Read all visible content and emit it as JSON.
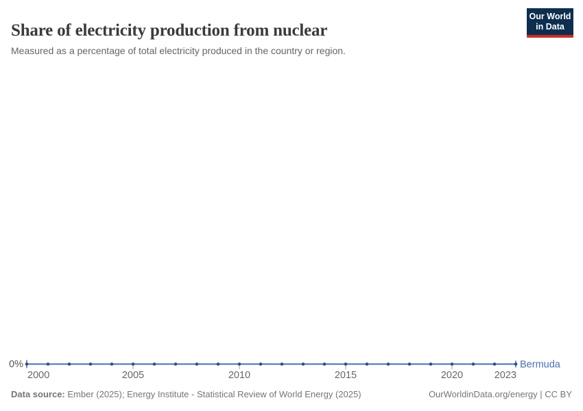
{
  "header": {
    "title": "Share of electricity production from nuclear",
    "subtitle": "Measured as a percentage of total electricity produced in the country or region.",
    "logo": {
      "line1": "Our World",
      "line2": "in Data",
      "bg_color": "#0d2e4e",
      "accent_color": "#cb2d22"
    }
  },
  "chart_data": {
    "type": "line",
    "title": "Share of electricity production from nuclear",
    "subtitle": "Measured as a percentage of total electricity produced in the country or region.",
    "xlabel": "",
    "ylabel": "",
    "xlim": [
      2000,
      2023
    ],
    "ylim": [
      0,
      0
    ],
    "grid": false,
    "x_ticks": [
      2000,
      2005,
      2010,
      2015,
      2020,
      2023
    ],
    "y_tick_labels": [
      "0%"
    ],
    "legend_position": "end-of-line",
    "axis_text_color": "#666666",
    "tick_color": "#a0a0a0",
    "series": [
      {
        "name": "Bermuda",
        "unit": "%",
        "line_color": "#4c6eb0",
        "point_color": "#2e4d8c",
        "x": [
          2000,
          2001,
          2002,
          2003,
          2004,
          2005,
          2006,
          2007,
          2008,
          2009,
          2010,
          2011,
          2012,
          2013,
          2014,
          2015,
          2016,
          2017,
          2018,
          2019,
          2020,
          2021,
          2022,
          2023
        ],
        "values": [
          0,
          0,
          0,
          0,
          0,
          0,
          0,
          0,
          0,
          0,
          0,
          0,
          0,
          0,
          0,
          0,
          0,
          0,
          0,
          0,
          0,
          0,
          0,
          0
        ]
      }
    ]
  },
  "footer": {
    "datasource_label": "Data source:",
    "datasource_text": " Ember (2025); Energy Institute - Statistical Review of World Energy (2025)",
    "link_text": "OurWorldinData.org/energy | CC BY"
  }
}
